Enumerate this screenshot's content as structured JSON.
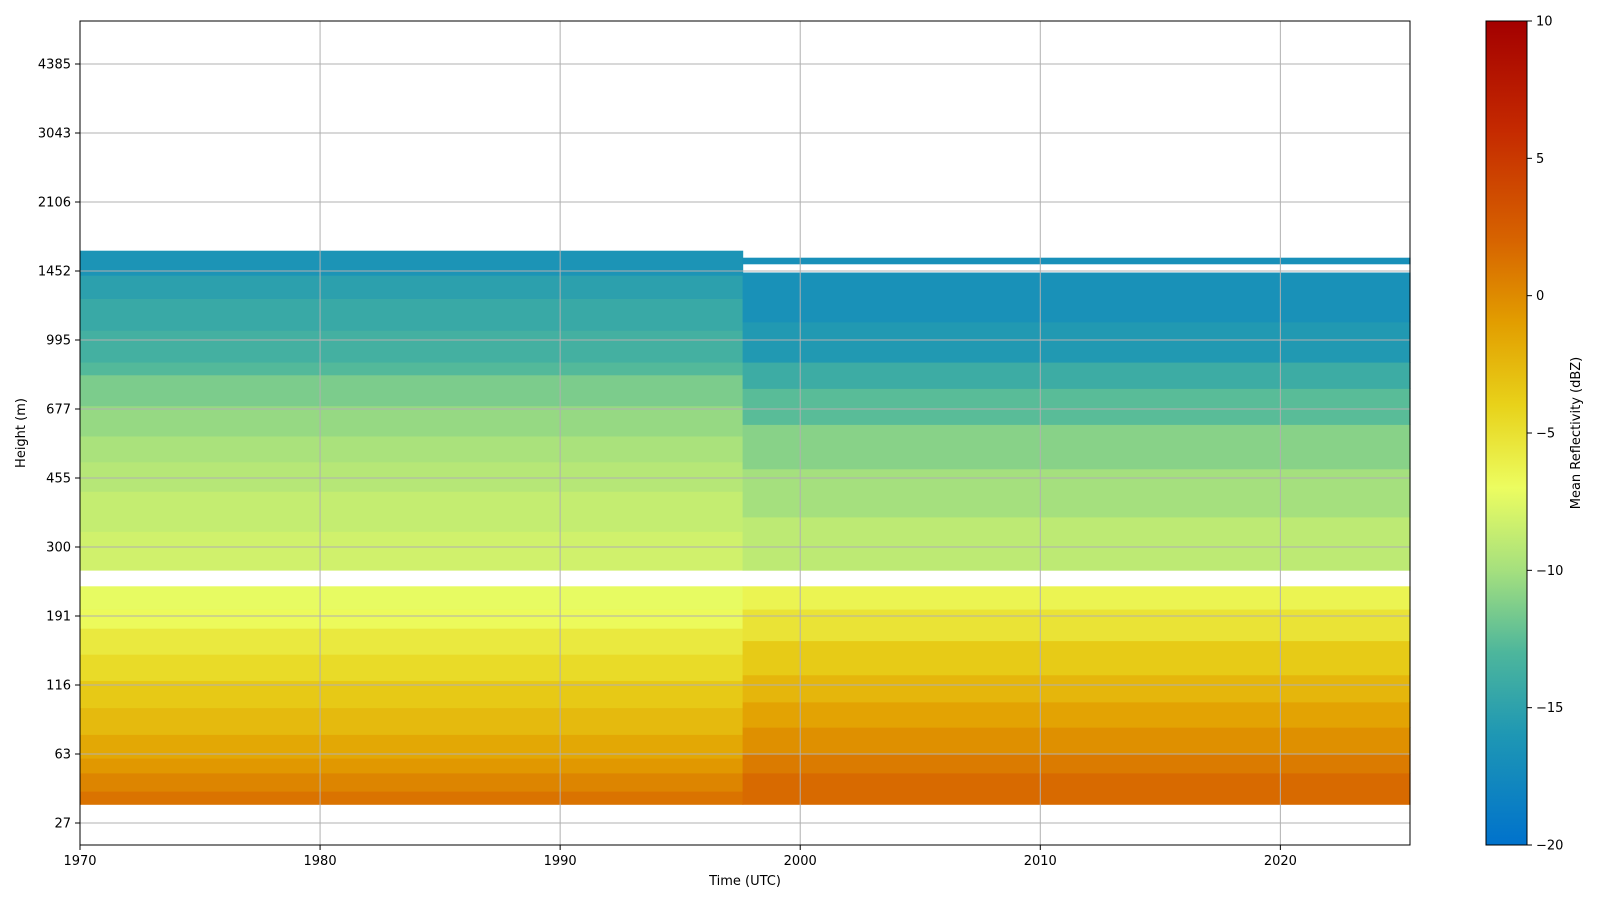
{
  "chart_data": {
    "type": "heatmap",
    "xlabel": "Time (UTC)",
    "ylabel": "Height (m)",
    "x_ticks": [
      1970,
      1980,
      1990,
      2000,
      2010,
      2020
    ],
    "x_range": [
      1970,
      2025.4
    ],
    "y_scale": "log (tick positions evenly spaced)",
    "y_ticks": [
      27,
      63,
      116,
      191,
      300,
      455,
      677,
      995,
      1452,
      2106,
      3043,
      4385
    ],
    "grid": true,
    "colorbar": {
      "label": "Mean Reflectivity (dBZ)",
      "range": [
        -20,
        10
      ],
      "ticks": [
        -20,
        -15,
        -10,
        -5,
        0,
        5,
        10
      ],
      "colormap": "blue-teal-green-yellow-orange-red",
      "stops": [
        {
          "v": -20,
          "color": "#0072cc"
        },
        {
          "v": -16,
          "color": "#1e97b4"
        },
        {
          "v": -13,
          "color": "#4db69c"
        },
        {
          "v": -10,
          "color": "#a5e07e"
        },
        {
          "v": -7,
          "color": "#ecfd60"
        },
        {
          "v": -4,
          "color": "#e8d21a"
        },
        {
          "v": -1,
          "color": "#e29e00"
        },
        {
          "v": 2,
          "color": "#d76400"
        },
        {
          "v": 6,
          "color": "#c52a00"
        },
        {
          "v": 10,
          "color": "#a30000"
        }
      ]
    },
    "segments": [
      {
        "x_range": [
          1970,
          1997.6
        ],
        "layers": [
          {
            "y": [
              34,
              40
            ],
            "dbz": 1.2
          },
          {
            "y": [
              40,
              50
            ],
            "dbz": 0.3
          },
          {
            "y": [
              50,
              60
            ],
            "dbz": -0.7
          },
          {
            "y": [
              60,
              75
            ],
            "dbz": -1.6
          },
          {
            "y": [
              75,
              95
            ],
            "dbz": -2.6
          },
          {
            "y": [
              95,
              120
            ],
            "dbz": -3.5
          },
          {
            "y": [
              120,
              145
            ],
            "dbz": -4.6
          },
          {
            "y": [
              145,
              175
            ],
            "dbz": -5.6
          },
          {
            "y": [
              175,
              200
            ],
            "dbz": -6.8
          },
          {
            "y": [
              200,
              232
            ],
            "dbz": -7.2
          },
          {
            "y": [
              258,
              330
            ],
            "dbz": -8.2
          },
          {
            "y": [
              330,
              420
            ],
            "dbz": -8.7
          },
          {
            "y": [
              420,
              500
            ],
            "dbz": -9.3
          },
          {
            "y": [
              500,
              580
            ],
            "dbz": -9.8
          },
          {
            "y": [
              580,
              690
            ],
            "dbz": -10.5
          },
          {
            "y": [
              690,
              820
            ],
            "dbz": -11.4
          },
          {
            "y": [
              820,
              880
            ],
            "dbz": -12.8
          },
          {
            "y": [
              880,
              1050
            ],
            "dbz": -13.6
          },
          {
            "y": [
              1050,
              1250
            ],
            "dbz": -14.3
          },
          {
            "y": [
              1250,
              1420
            ],
            "dbz": -15.1
          },
          {
            "y": [
              1420,
              1620
            ],
            "dbz": -16.3
          }
        ]
      },
      {
        "x_range": [
          1997.6,
          2025.4
        ],
        "layers": [
          {
            "y": [
              34,
              50
            ],
            "dbz": 1.7
          },
          {
            "y": [
              50,
              63
            ],
            "dbz": 0.8
          },
          {
            "y": [
              63,
              80
            ],
            "dbz": -0.3
          },
          {
            "y": [
              80,
              100
            ],
            "dbz": -1.3
          },
          {
            "y": [
              100,
              125
            ],
            "dbz": -2.4
          },
          {
            "y": [
              125,
              160
            ],
            "dbz": -3.6
          },
          {
            "y": [
              160,
              200
            ],
            "dbz": -5.2
          },
          {
            "y": [
              200,
              232
            ],
            "dbz": -6.4
          },
          {
            "y": [
              258,
              360
            ],
            "dbz": -9.0
          },
          {
            "y": [
              360,
              480
            ],
            "dbz": -10.0
          },
          {
            "y": [
              480,
              620
            ],
            "dbz": -11.0
          },
          {
            "y": [
              620,
              760
            ],
            "dbz": -12.6
          },
          {
            "y": [
              760,
              880
            ],
            "dbz": -14.0
          },
          {
            "y": [
              880,
              1100
            ],
            "dbz": -15.8
          },
          {
            "y": [
              1100,
              1440
            ],
            "dbz": -16.6
          },
          {
            "y": [
              1510,
              1560
            ],
            "dbz": -16.8
          }
        ]
      }
    ]
  }
}
